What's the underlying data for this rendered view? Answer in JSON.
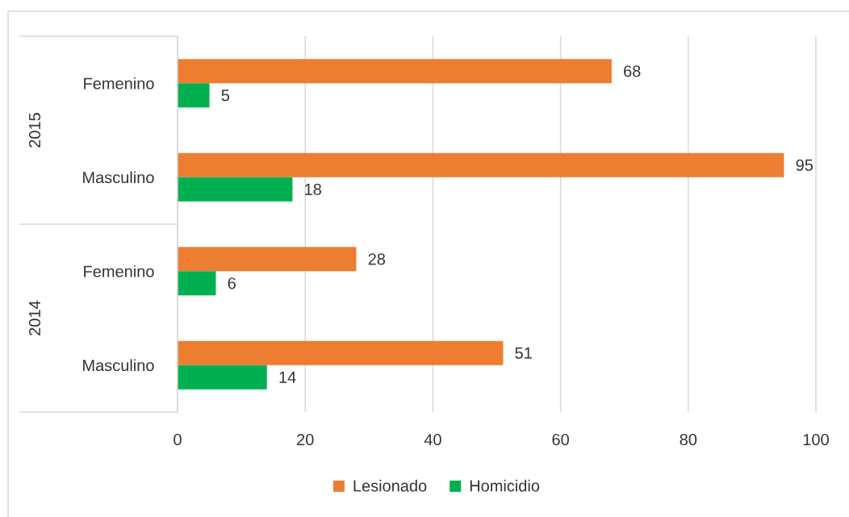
{
  "chart_data": {
    "type": "bar",
    "orientation": "horizontal",
    "categories": [
      "Femenino",
      "Masculino",
      "Femenino",
      "Masculino"
    ],
    "series": [
      {
        "name": "Lesionado",
        "color": "#ed7d31",
        "values": [
          68,
          95,
          28,
          51
        ]
      },
      {
        "name": "Homicidio",
        "color": "#00b050",
        "values": [
          5,
          18,
          6,
          14
        ]
      }
    ],
    "annotations": [
      "2015",
      "2014"
    ],
    "xlim": [
      0,
      100
    ],
    "xticks": [
      0,
      20,
      40,
      60,
      80,
      100
    ],
    "grid": "x",
    "legend": "bottom",
    "data_labels": true
  }
}
